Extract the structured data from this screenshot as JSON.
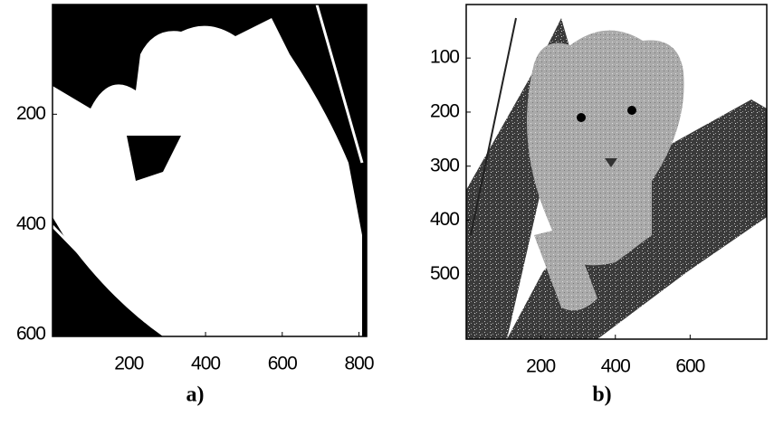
{
  "panels": [
    {
      "xlim": [
        1,
        820
      ],
      "ylim": [
        1,
        603
      ],
      "xticks": [
        200,
        400,
        600,
        800
      ],
      "yticks": [
        200,
        400,
        600
      ],
      "caption": "a)"
    },
    {
      "xlim": [
        1,
        805
      ],
      "ylim": [
        1,
        620
      ],
      "xticks": [
        200,
        400,
        600
      ],
      "yticks": [
        100,
        200,
        300,
        400,
        500
      ],
      "caption": "b)"
    }
  ]
}
